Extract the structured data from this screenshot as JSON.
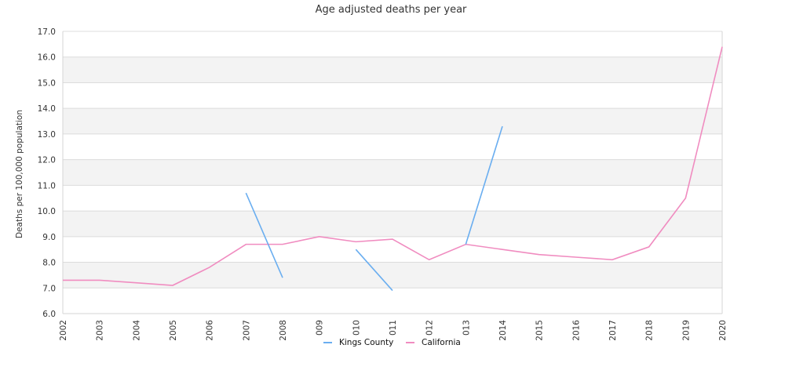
{
  "chart_data": {
    "type": "line",
    "title": "Age adjusted deaths per year",
    "xlabel": "",
    "ylabel": "Deaths per 100,000 population",
    "ylim": [
      6.0,
      17.0
    ],
    "yticks": [
      "6.0",
      "7.0",
      "8.0",
      "9.0",
      "10.0",
      "11.0",
      "12.0",
      "13.0",
      "14.0",
      "15.0",
      "16.0",
      "17.0"
    ],
    "x": [
      "2002",
      "2003",
      "2004",
      "2005",
      "2006",
      "2007",
      "2008",
      "2009",
      "2010",
      "2011",
      "2012",
      "2013",
      "2014",
      "2015",
      "2016",
      "2017",
      "2018",
      "2019",
      "2020"
    ],
    "grid": true,
    "legend_placement": "bottom-center",
    "series": [
      {
        "name": "Kings County",
        "color": "#6aaef0",
        "values": [
          null,
          null,
          null,
          null,
          null,
          10.7,
          7.4,
          null,
          8.5,
          6.9,
          null,
          8.7,
          13.3,
          null,
          null,
          null,
          null,
          null,
          null
        ]
      },
      {
        "name": "California",
        "color": "#f08cc0",
        "values": [
          7.3,
          7.3,
          7.2,
          7.1,
          7.8,
          8.7,
          8.7,
          9.0,
          8.8,
          8.9,
          8.1,
          8.7,
          8.5,
          8.3,
          8.2,
          8.1,
          8.6,
          10.5,
          16.4
        ]
      }
    ]
  }
}
